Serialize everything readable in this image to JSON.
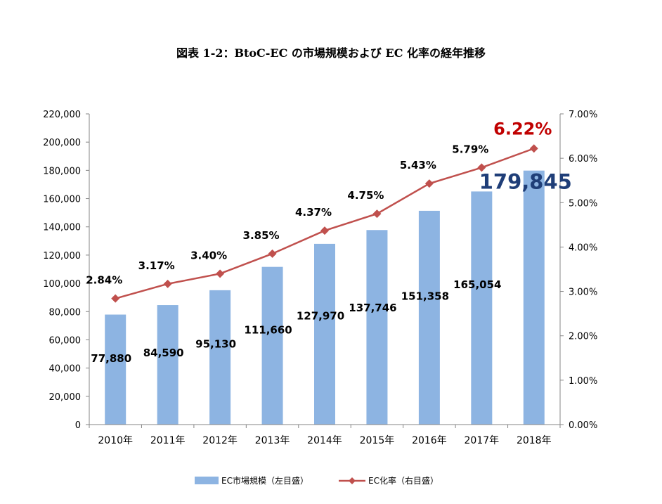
{
  "title": "図表 1-2：BtoC-EC の市場規模および EC 化率の経年推移",
  "chart_data": {
    "type": "bar",
    "categories": [
      "2010年",
      "2011年",
      "2012年",
      "2013年",
      "2014年",
      "2015年",
      "2016年",
      "2017年",
      "2018年"
    ],
    "series": [
      {
        "name": "EC市場規模（左目盛）",
        "type": "bar",
        "axis": "left",
        "values": [
          77880,
          84590,
          95130,
          111660,
          127970,
          137746,
          151358,
          165054,
          179845
        ],
        "labels": [
          "77,880",
          "84,590",
          "95,130",
          "111,660",
          "127,970",
          "137,746",
          "151,358",
          "165,054",
          "179,845"
        ],
        "color": "#8DB4E2"
      },
      {
        "name": "EC化率（右目盛）",
        "type": "line",
        "axis": "right",
        "values": [
          2.84,
          3.17,
          3.4,
          3.85,
          4.37,
          4.75,
          5.43,
          5.79,
          6.22
        ],
        "labels": [
          "2.84%",
          "3.17%",
          "3.40%",
          "3.85%",
          "4.37%",
          "4.75%",
          "5.43%",
          "5.79%",
          "6.22%"
        ],
        "color": "#C0504D"
      }
    ],
    "y_left": {
      "range": [
        0,
        220000
      ],
      "ticks": [
        "0",
        "20,000",
        "40,000",
        "60,000",
        "80,000",
        "100,000",
        "120,000",
        "140,000",
        "160,000",
        "180,000",
        "200,000",
        "220,000"
      ]
    },
    "y_right": {
      "range": [
        0,
        7
      ],
      "ticks": [
        "0.00%",
        "1.00%",
        "2.00%",
        "3.00%",
        "4.00%",
        "5.00%",
        "6.00%",
        "7.00%"
      ]
    },
    "highlight": {
      "bar_last_color": "#1F3E78",
      "rate_last_color": "#C00000"
    },
    "grid": false,
    "legend": "bottom"
  }
}
